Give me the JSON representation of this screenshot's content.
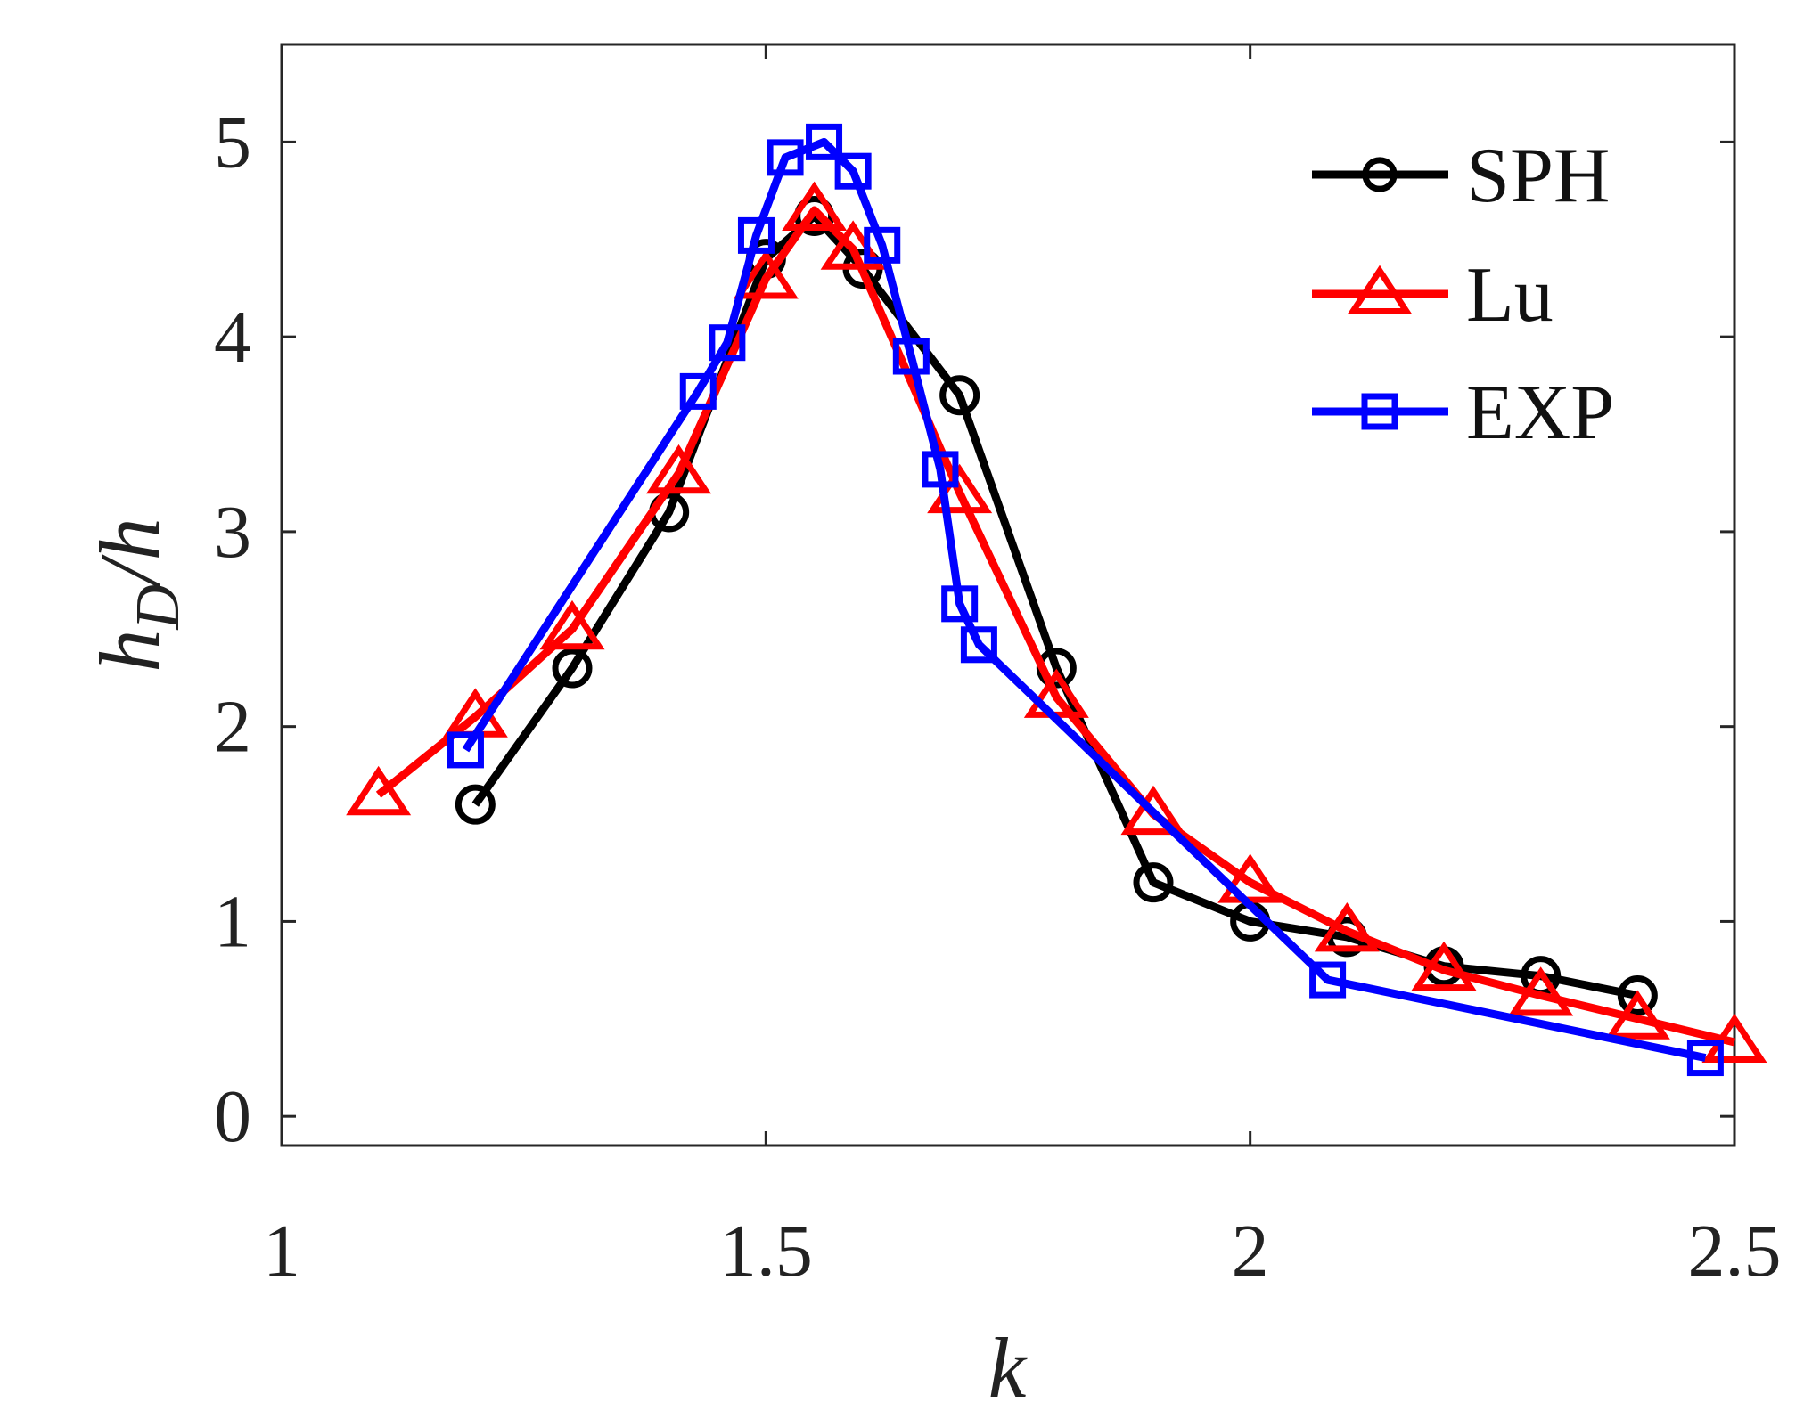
{
  "chart_data": {
    "type": "line",
    "title": "",
    "xlabel": "k",
    "ylabel_main": "h",
    "ylabel_sub": "D",
    "ylabel_tail": "/h",
    "xlim": [
      1,
      2.5
    ],
    "ylim": [
      -0.15,
      5.5
    ],
    "grid": false,
    "legend_position": "top-right",
    "xticks": [
      1,
      1.5,
      2,
      2.5
    ],
    "xtick_labels": [
      "1",
      "1.5",
      "2",
      "2.5"
    ],
    "yticks": [
      0,
      1,
      2,
      3,
      4,
      5
    ],
    "ytick_labels": [
      "0",
      "1",
      "2",
      "3",
      "4",
      "5"
    ],
    "series": [
      {
        "name": "SPH",
        "color": "#000000",
        "marker": "circle",
        "x": [
          1.2,
          1.3,
          1.4,
          1.5,
          1.55,
          1.6,
          1.7,
          1.8,
          1.9,
          2.0,
          2.1,
          2.2,
          2.3,
          2.4
        ],
        "y": [
          1.6,
          2.3,
          3.1,
          4.4,
          4.62,
          4.35,
          3.7,
          2.3,
          1.2,
          1.0,
          0.92,
          0.77,
          0.72,
          0.62
        ]
      },
      {
        "name": "Lu",
        "color": "#ff0000",
        "marker": "triangle",
        "x": [
          1.1,
          1.2,
          1.3,
          1.41,
          1.5,
          1.55,
          1.59,
          1.7,
          1.8,
          1.9,
          2.0,
          2.1,
          2.2,
          2.3,
          2.4,
          2.5
        ],
        "y": [
          1.65,
          2.05,
          2.5,
          3.3,
          4.3,
          4.65,
          4.45,
          3.2,
          2.15,
          1.55,
          1.2,
          0.95,
          0.75,
          0.62,
          0.5,
          0.38
        ]
      },
      {
        "name": "EXP",
        "color": "#0000ff",
        "marker": "square",
        "x": [
          1.19,
          1.43,
          1.46,
          1.49,
          1.52,
          1.56,
          1.59,
          1.62,
          1.65,
          1.68,
          1.7,
          1.72,
          2.08,
          2.47
        ],
        "y": [
          1.88,
          3.72,
          3.97,
          4.52,
          4.92,
          5.0,
          4.85,
          4.47,
          3.9,
          3.32,
          2.63,
          2.42,
          0.7,
          0.3
        ]
      }
    ]
  }
}
